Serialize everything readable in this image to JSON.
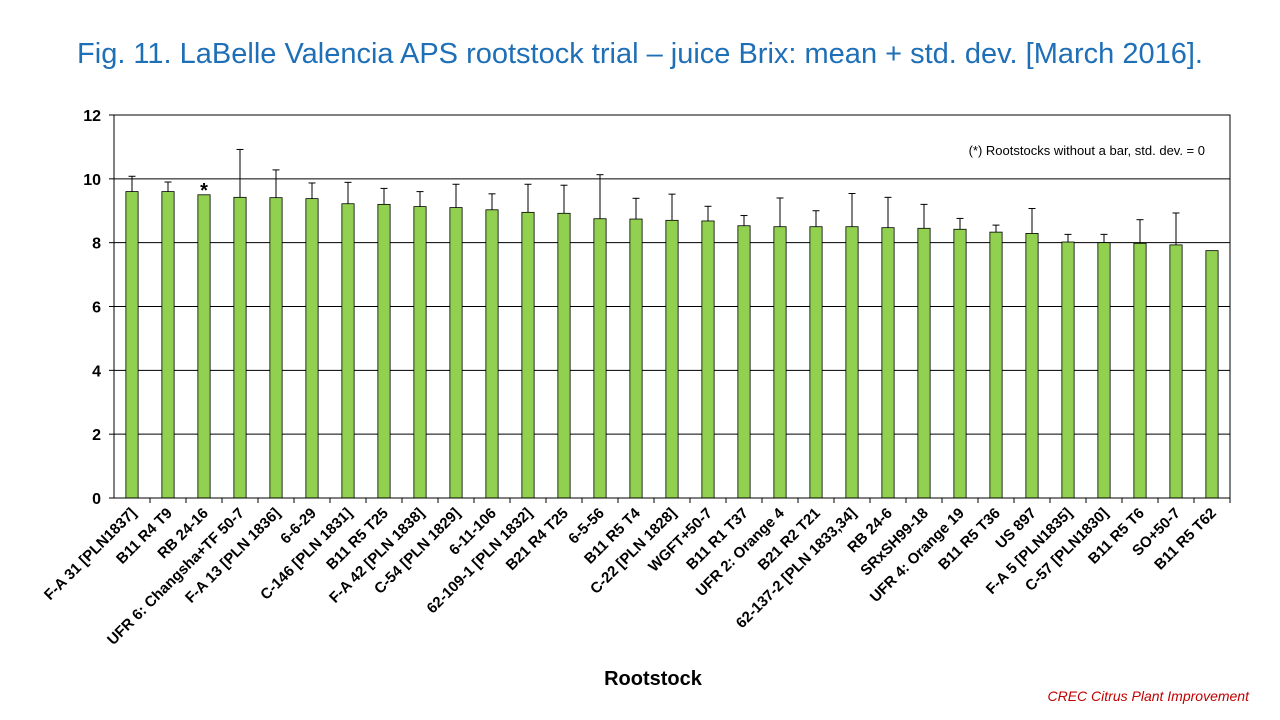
{
  "title": "Fig. 11. LaBelle Valencia APS rootstock trial – juice Brix: mean + std. dev. [March 2016].",
  "note": "(*) Rootstocks without  a bar, std. dev. = 0",
  "credit": "CREC Citrus Plant Improvement",
  "colors": {
    "bar": "#92d050",
    "bar_edge": "#000000",
    "title": "#1f6fb7",
    "credit": "#c00000"
  },
  "chart_data": {
    "type": "bar",
    "title": "",
    "xlabel": "Rootstock",
    "ylabel": "",
    "ylim": [
      0,
      12
    ],
    "yticks": [
      0,
      2,
      4,
      6,
      8,
      10,
      12
    ],
    "grid": true,
    "categories": [
      "F-A 31 [PLN1837]",
      "B11 R4 T9",
      "RB 24-16",
      "UFR 6: Changsha+TF 50-7",
      "F-A 13 [PLN 1836]",
      "6-6-29",
      "C-146 [PLN 1831]",
      "B11 R5 T25",
      "F-A 42 [PLN 1838]",
      "C-54 [PLN 1829]",
      "6-11-106",
      "62-109-1 [PLN 1832]",
      "B21 R4 T25",
      "6-5-56",
      "B11 R5 T4",
      "C-22 [PLN 1828]",
      "WGFT+50-7",
      "B11 R1 T37",
      "UFR 2: Orange 4",
      "B21 R2 T21",
      "62-137-2 [PLN 1833,34]",
      "RB 24-6",
      "SRxSH99-18",
      "UFR 4: Orange 19",
      "B11 R5 T36",
      "US 897",
      "F-A 5 [PLN1835]",
      "C-57 [PLN1830]",
      "B11 R5 T6",
      "SO+50-7",
      "B11 R5 T62"
    ],
    "series": [
      {
        "values": [
          9.6,
          9.6,
          9.5,
          9.42,
          9.41,
          9.38,
          9.22,
          9.2,
          9.13,
          9.1,
          9.03,
          8.95,
          8.92,
          8.75,
          8.74,
          8.7,
          8.68,
          8.53,
          8.5,
          8.5,
          8.5,
          8.47,
          8.45,
          8.42,
          8.33,
          8.29,
          8.02,
          8.0,
          7.98,
          7.93,
          7.75
        ],
        "std_dev": [
          0.48,
          0.3,
          0.0,
          1.5,
          0.87,
          0.49,
          0.67,
          0.5,
          0.47,
          0.73,
          0.5,
          0.88,
          0.88,
          1.38,
          0.65,
          0.82,
          0.46,
          0.32,
          0.9,
          0.5,
          1.04,
          0.95,
          0.75,
          0.34,
          0.22,
          0.78,
          0.24,
          0.26,
          0.74,
          1.0,
          0.0
        ]
      }
    ],
    "annotations": [
      {
        "category_index": 2,
        "text": "*"
      }
    ]
  }
}
